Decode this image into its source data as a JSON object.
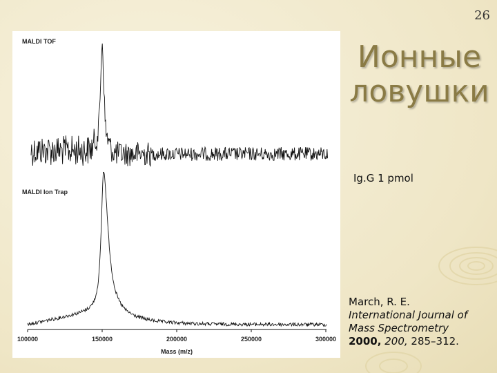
{
  "slide_number": "26",
  "title": "Ионные ловушки",
  "sample": "Ig.G 1 pmol",
  "figure": {
    "top_label": "MALDI TOF",
    "bottom_label": "MALDI Ion Trap",
    "x_label": "Mass (m/z)",
    "x_ticks": [
      "100000",
      "150000",
      "200000",
      "250000",
      "300000"
    ]
  },
  "reference": {
    "authors": "March, R. E.",
    "journal": "International Journal of Mass Spectrometry",
    "year": "2000,",
    "volume": "200,",
    "pages": "285–312."
  }
}
